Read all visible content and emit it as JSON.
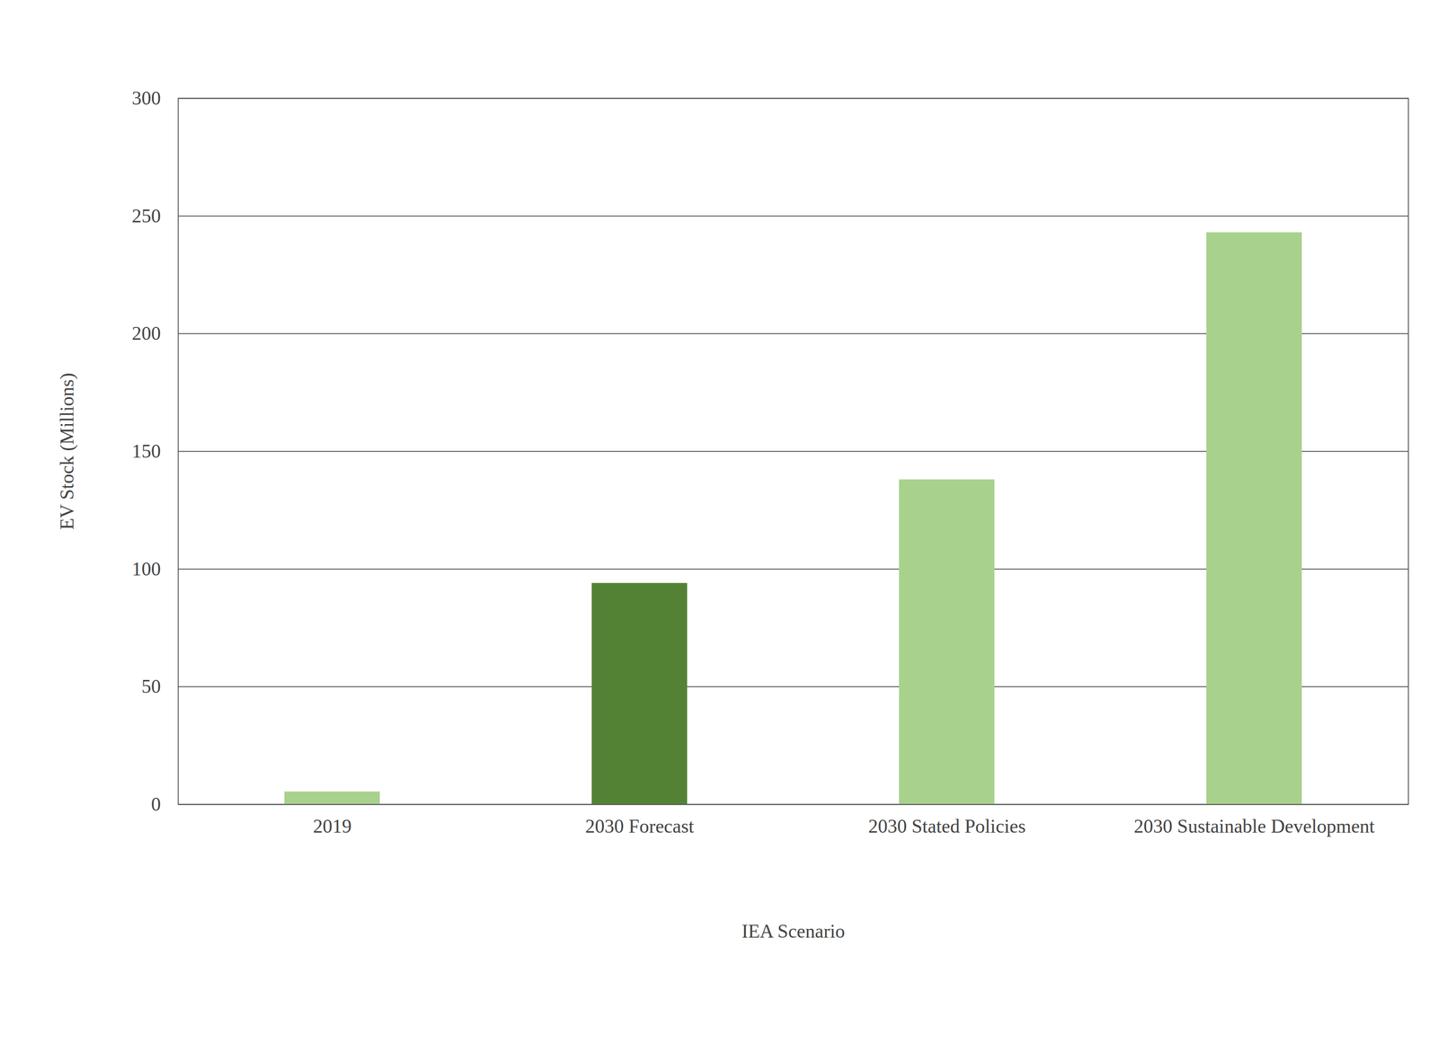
{
  "chart_data": {
    "type": "bar",
    "xlabel": "IEA Scenario",
    "ylabel": "EV Stock (Millions)",
    "categories": [
      "2019",
      "2030 Forecast",
      "2030 Stated Policies",
      "2030 Sustainable Development"
    ],
    "values": [
      5.4,
      94,
      138,
      243
    ],
    "colors": [
      "#a9d18e",
      "#548235",
      "#a9d18e",
      "#a9d18e"
    ],
    "ylim": [
      0,
      300
    ],
    "yticks": [
      0,
      50,
      100,
      150,
      200,
      250,
      300
    ],
    "grid": true
  }
}
